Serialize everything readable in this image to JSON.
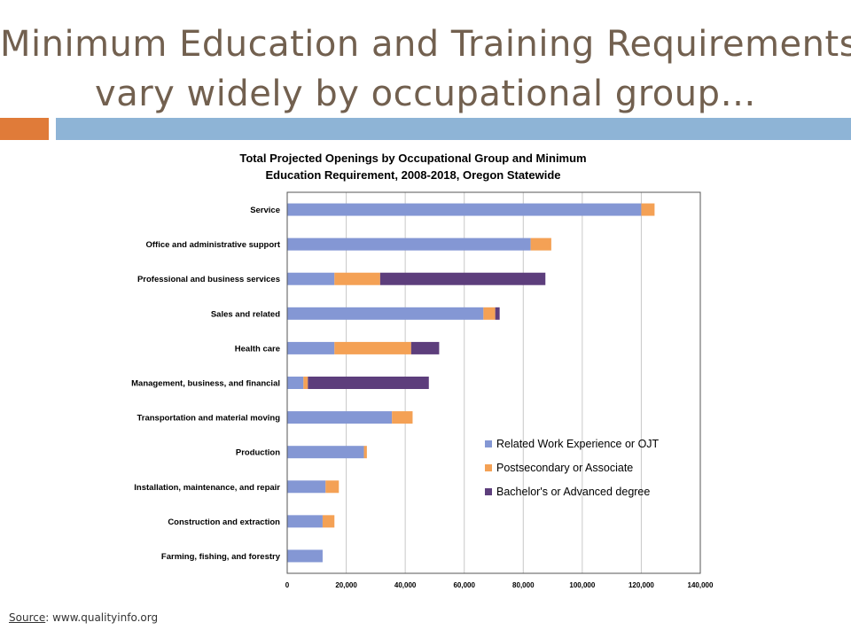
{
  "slide": {
    "title_line1": "Minimum Education and Training Requirements",
    "title_line2": "vary widely by occupational group…",
    "source_label": "Source",
    "source_text": ": www.qualityinfo.org"
  },
  "colors": {
    "title": "#72604f",
    "accent_orange": "#e07b39",
    "accent_blue": "#8eb4d6"
  },
  "chart_data": {
    "type": "bar",
    "orientation": "horizontal",
    "stacked": true,
    "title_lines": [
      "Total Projected Openings by Occupational Group and Minimum",
      "Education Requirement, 2008-2018, Oregon Statewide"
    ],
    "categories": [
      "Service",
      "Office and administrative support",
      "Professional and business services",
      "Sales and related",
      "Health care",
      "Management, business, and financial",
      "Transportation and material moving",
      "Production",
      "Installation, maintenance, and repair",
      "Construction and extraction",
      "Farming, fishing, and forestry"
    ],
    "series": [
      {
        "name": "Related Work Experience or OJT",
        "color": "#8497d4",
        "values": [
          120000,
          82500,
          16000,
          66500,
          16000,
          5500,
          35500,
          26000,
          13000,
          12000,
          12000
        ]
      },
      {
        "name": "Postsecondary or Associate",
        "color": "#f4a155",
        "values": [
          4500,
          7000,
          15500,
          4000,
          26000,
          1500,
          7000,
          1000,
          4500,
          4000,
          0
        ]
      },
      {
        "name": "Bachelor's or Advanced degree",
        "color": "#5d3e7c",
        "values": [
          0,
          0,
          56000,
          1500,
          9500,
          41000,
          0,
          0,
          0,
          0,
          0
        ]
      }
    ],
    "xlim": [
      0,
      140000
    ],
    "xticks": [
      0,
      20000,
      40000,
      60000,
      80000,
      100000,
      120000,
      140000
    ],
    "xtick_labels": [
      "0",
      "20,000",
      "40,000",
      "60,000",
      "80,000",
      "100,000",
      "120,000",
      "140,000"
    ],
    "grid": true,
    "legend_position": "bottom-right"
  }
}
